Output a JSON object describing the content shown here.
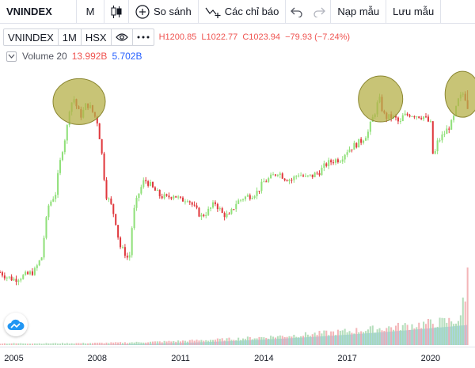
{
  "toolbar": {
    "symbol": "VNINDEX",
    "interval": "M",
    "candle_icon": "candlestick-icon",
    "compare_label": "So sánh",
    "compare_icon": "plus-circle-icon",
    "indicators_label": "Các chỉ báo",
    "indicators_icon": "indicator-icon",
    "undo_icon": "undo-icon",
    "redo_icon": "redo-icon",
    "load_template_label": "Nạp mẫu",
    "save_template_label": "Lưu mẫu"
  },
  "legend": {
    "symbol": "VNINDEX",
    "interval": "1M",
    "exchange": "HSX",
    "eye_icon": "eye-icon",
    "more_icon": "more-icon",
    "high": "H1200.85",
    "low": "L1022.77",
    "close": "C1023.94",
    "change": "−79.93 (−7.24%)"
  },
  "volume": {
    "label": "Volume 20",
    "value": "13.992B",
    "ma_value": "5.702B"
  },
  "colors": {
    "up": "#90e07a",
    "down": "#e0393e",
    "volume_up": "#a8d8b0",
    "volume_down": "#f2a8ac",
    "volume_area": "#8ec8ea",
    "highlight_fill": "#b5b048",
    "highlight_stroke": "#8a8630"
  },
  "chart_data": {
    "type": "candlestick",
    "x_ticks": [
      "2005",
      "2008",
      "2011",
      "2014",
      "2017",
      "2020"
    ],
    "x_tick_years": [
      2005,
      2008,
      2011,
      2014,
      2017,
      2020
    ],
    "x_range": [
      2004.5,
      2021.6
    ],
    "y_range": [
      200,
      1320
    ],
    "closes": [
      [
        2004.5,
        255
      ],
      [
        2004.75,
        245
      ],
      [
        2005.0,
        240
      ],
      [
        2005.25,
        245
      ],
      [
        2005.5,
        250
      ],
      [
        2005.75,
        258
      ],
      [
        2006.0,
        290
      ],
      [
        2006.25,
        450
      ],
      [
        2006.5,
        500
      ],
      [
        2006.75,
        730
      ],
      [
        2006.9,
        850
      ],
      [
        2007.0,
        1030
      ],
      [
        2007.15,
        1130
      ],
      [
        2007.3,
        1010
      ],
      [
        2007.45,
        960
      ],
      [
        2007.55,
        1050
      ],
      [
        2007.7,
        1060
      ],
      [
        2007.85,
        990
      ],
      [
        2008.0,
        920
      ],
      [
        2008.15,
        720
      ],
      [
        2008.3,
        500
      ],
      [
        2008.5,
        450
      ],
      [
        2008.65,
        400
      ],
      [
        2008.8,
        320
      ],
      [
        2009.0,
        300
      ],
      [
        2009.15,
        280
      ],
      [
        2009.3,
        420
      ],
      [
        2009.5,
        500
      ],
      [
        2009.7,
        560
      ],
      [
        2009.85,
        545
      ],
      [
        2010.0,
        520
      ],
      [
        2010.25,
        490
      ],
      [
        2010.5,
        480
      ],
      [
        2010.75,
        495
      ],
      [
        2011.0,
        470
      ],
      [
        2011.25,
        480
      ],
      [
        2011.5,
        440
      ],
      [
        2011.75,
        410
      ],
      [
        2012.0,
        430
      ],
      [
        2012.25,
        460
      ],
      [
        2012.5,
        420
      ],
      [
        2012.75,
        410
      ],
      [
        2013.0,
        460
      ],
      [
        2013.25,
        480
      ],
      [
        2013.5,
        490
      ],
      [
        2013.75,
        505
      ],
      [
        2014.0,
        550
      ],
      [
        2014.25,
        570
      ],
      [
        2014.5,
        600
      ],
      [
        2014.75,
        570
      ],
      [
        2015.0,
        560
      ],
      [
        2015.25,
        590
      ],
      [
        2015.5,
        570
      ],
      [
        2015.75,
        580
      ],
      [
        2016.0,
        600
      ],
      [
        2016.25,
        640
      ],
      [
        2016.5,
        660
      ],
      [
        2016.75,
        670
      ],
      [
        2017.0,
        720
      ],
      [
        2017.25,
        750
      ],
      [
        2017.5,
        780
      ],
      [
        2017.75,
        840
      ],
      [
        2018.0,
        1000
      ],
      [
        2018.15,
        1120
      ],
      [
        2018.3,
        980
      ],
      [
        2018.45,
        950
      ],
      [
        2018.6,
        960
      ],
      [
        2018.75,
        940
      ],
      [
        2018.9,
        900
      ],
      [
        2019.0,
        960
      ],
      [
        2019.25,
        980
      ],
      [
        2019.5,
        970
      ],
      [
        2019.75,
        960
      ],
      [
        2020.0,
        900
      ],
      [
        2020.1,
        660
      ],
      [
        2020.25,
        770
      ],
      [
        2020.45,
        820
      ],
      [
        2020.6,
        860
      ],
      [
        2020.8,
        920
      ],
      [
        2021.0,
        1100
      ],
      [
        2021.2,
        1180
      ],
      [
        2021.35,
        1023.94
      ]
    ],
    "highlight_zones": [
      {
        "x": 2007.35,
        "y": 1090
      },
      {
        "x": 2018.2,
        "y": 1115
      },
      {
        "x": 2021.15,
        "y": 1160
      }
    ]
  }
}
